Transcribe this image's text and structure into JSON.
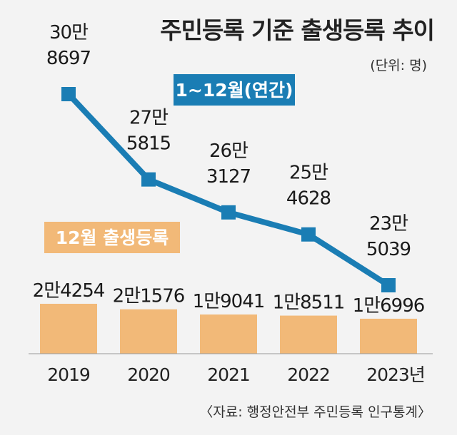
{
  "title": "주민등록 기준 출생등록 추이",
  "unit": "(단위: 명)",
  "source": "〈자료: 행정안전부 주민등록 인구통계〉",
  "colors": {
    "line": "#1a7db4",
    "bar": "#f2b978",
    "background": "#f3f3f3"
  },
  "chart_data": {
    "type": "bar",
    "categories": [
      "2019",
      "2020",
      "2021",
      "2022",
      "2023년"
    ],
    "grid": false,
    "series": [
      {
        "name": "1~12월(연간)",
        "chart_type": "line",
        "values": [
          308697,
          275815,
          263127,
          254628,
          235039
        ],
        "labels": [
          [
            "30만",
            "8697"
          ],
          [
            "27만",
            "5815"
          ],
          [
            "26만",
            "3127"
          ],
          [
            "25만",
            "4628"
          ],
          [
            "23만",
            "5039"
          ]
        ]
      },
      {
        "name": "12월 출생등록",
        "chart_type": "bar",
        "values": [
          24254,
          21576,
          19041,
          18511,
          16996
        ],
        "labels": [
          "2만4254",
          "2만1576",
          "1만9041",
          "1만8511",
          "1만6996"
        ]
      }
    ]
  }
}
